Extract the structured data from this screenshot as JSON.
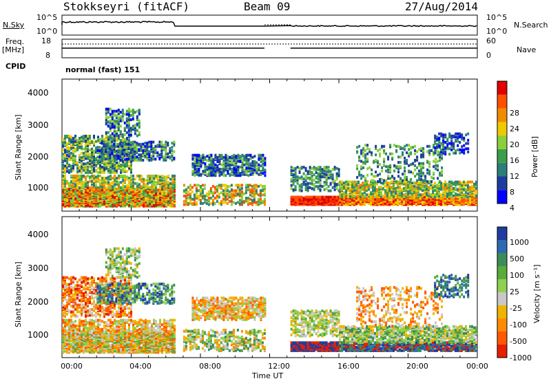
{
  "header": {
    "station": "Stokkseyri (fitACF)",
    "beam": "Beam 09",
    "date": "27/Aug/2014"
  },
  "top_panels": {
    "nsky_label": "N.Sky",
    "nsky_ticks": [
      "10^5",
      "10^0"
    ],
    "nsearch_label": "N.Search",
    "nsearch_ticks": [
      "10^5",
      "10^0"
    ],
    "freq_label": "Freq.",
    "freq_unit": "[MHz]",
    "freq_ticks": [
      "18",
      "8"
    ],
    "nave_label": "Nave",
    "nave_ticks": [
      "60",
      "0"
    ],
    "cpid_label": "CPID",
    "cpid_text": "normal (fast) 151"
  },
  "chart_data": [
    {
      "type": "heatmap",
      "name": "power",
      "ylabel": "Slant Range [km]",
      "yticks": [
        "4000",
        "3000",
        "2000",
        "1000"
      ],
      "ylim": [
        180,
        4500
      ],
      "xlim": [
        0,
        24
      ],
      "colorbar_label": "Power [dB]",
      "colorbar_ticks": [
        "28",
        "24",
        "20",
        "16",
        "12",
        "8",
        "4"
      ],
      "colors": [
        "#0000ff",
        "#1e3ca0",
        "#2e7d7d",
        "#3c9e4a",
        "#8ccf3c",
        "#f0c800",
        "#f08c00",
        "#ff5000",
        "#e00000"
      ],
      "data_gap_hours": [
        11.7,
        13.2
      ]
    },
    {
      "type": "heatmap",
      "name": "velocity",
      "ylabel": "Slant Range [km]",
      "yticks": [
        "4000",
        "3000",
        "2000",
        "1000"
      ],
      "ylim": [
        180,
        4500
      ],
      "xlim": [
        0,
        24
      ],
      "colorbar_label": "Velocity [m s⁻¹]",
      "colorbar_ticks": [
        "1000",
        "500",
        "100",
        "25",
        "-25",
        "-100",
        "-500",
        "-1000"
      ],
      "colors": [
        "#1e3c9e",
        "#2e6ab4",
        "#3c8c5a",
        "#5aaa3c",
        "#90d050",
        "#c8c8c8",
        "#f0b400",
        "#ff8c00",
        "#ff5a00",
        "#e81e00"
      ],
      "data_gap_hours": [
        11.7,
        13.2
      ]
    }
  ],
  "xaxis": {
    "ticks": [
      "00:00",
      "04:00",
      "08:00",
      "12:00",
      "16:00",
      "20:00",
      "00:00"
    ],
    "label": "Time UT"
  }
}
